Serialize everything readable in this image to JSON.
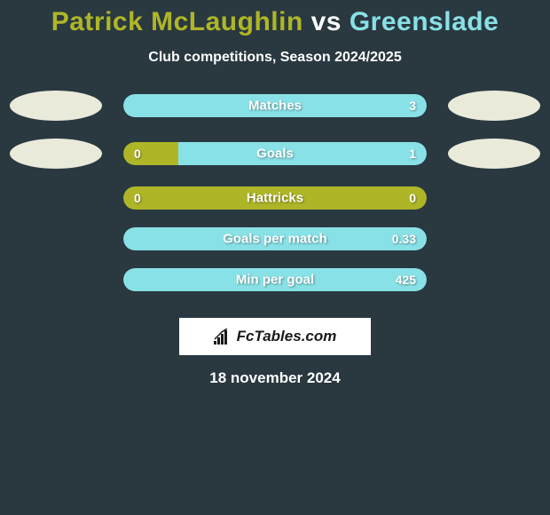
{
  "background_color": "#2a3840",
  "title": {
    "player1": "Patrick McLaughlin",
    "vs": "vs",
    "player2": "Greenslade",
    "player1_color": "#aeb627",
    "player2_color": "#88e1e6",
    "fontsize": 30
  },
  "subtitle": "Club competitions, Season 2024/2025",
  "colors": {
    "left": "#aeb627",
    "right": "#88e1e6",
    "avatar": "#e9ead9"
  },
  "bars": [
    {
      "label": "Matches",
      "left_val": "",
      "right_val": "3",
      "left_pct": 0,
      "right_pct": 100,
      "show_avatars": true
    },
    {
      "label": "Goals",
      "left_val": "0",
      "right_val": "1",
      "left_pct": 18,
      "right_pct": 82,
      "show_avatars": true
    },
    {
      "label": "Hattricks",
      "left_val": "0",
      "right_val": "0",
      "left_pct": 100,
      "right_pct": 0,
      "show_avatars": false
    },
    {
      "label": "Goals per match",
      "left_val": "",
      "right_val": "0.33",
      "left_pct": 0,
      "right_pct": 100,
      "show_avatars": false
    },
    {
      "label": "Min per goal",
      "left_val": "",
      "right_val": "425",
      "left_pct": 0,
      "right_pct": 100,
      "show_avatars": false
    }
  ],
  "footer": {
    "logo_text": "FcTables.com",
    "date": "18 november 2024"
  }
}
